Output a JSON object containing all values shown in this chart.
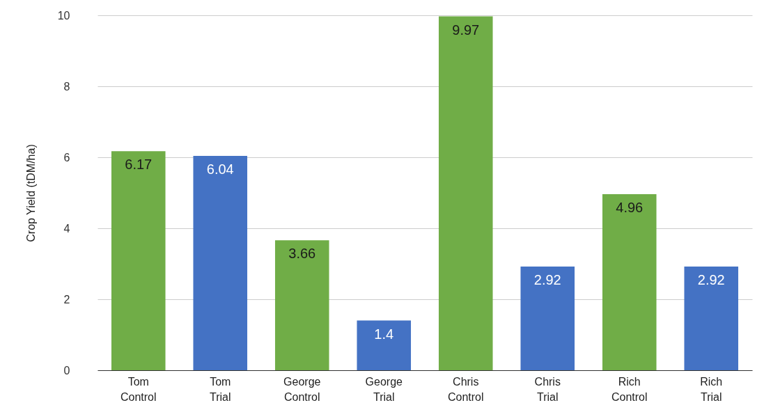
{
  "chart_data": {
    "type": "bar",
    "ylabel": "Crop Yield (tDM/ha)",
    "categories": [
      "Tom Control",
      "Tom Trial",
      "George Control",
      "George Trial",
      "Chris Control",
      "Chris Trial",
      "Rich Control",
      "Rich Trial"
    ],
    "values": [
      6.17,
      6.04,
      3.66,
      1.4,
      9.97,
      2.92,
      4.96,
      2.92
    ],
    "colors": [
      "#70ad47",
      "#4472c4",
      "#70ad47",
      "#4472c4",
      "#70ad47",
      "#4472c4",
      "#70ad47",
      "#4472c4"
    ],
    "ylim": [
      0,
      10
    ],
    "yticks": [
      0,
      2,
      4,
      6,
      8,
      10
    ],
    "grid": "y",
    "data_labels": true
  }
}
